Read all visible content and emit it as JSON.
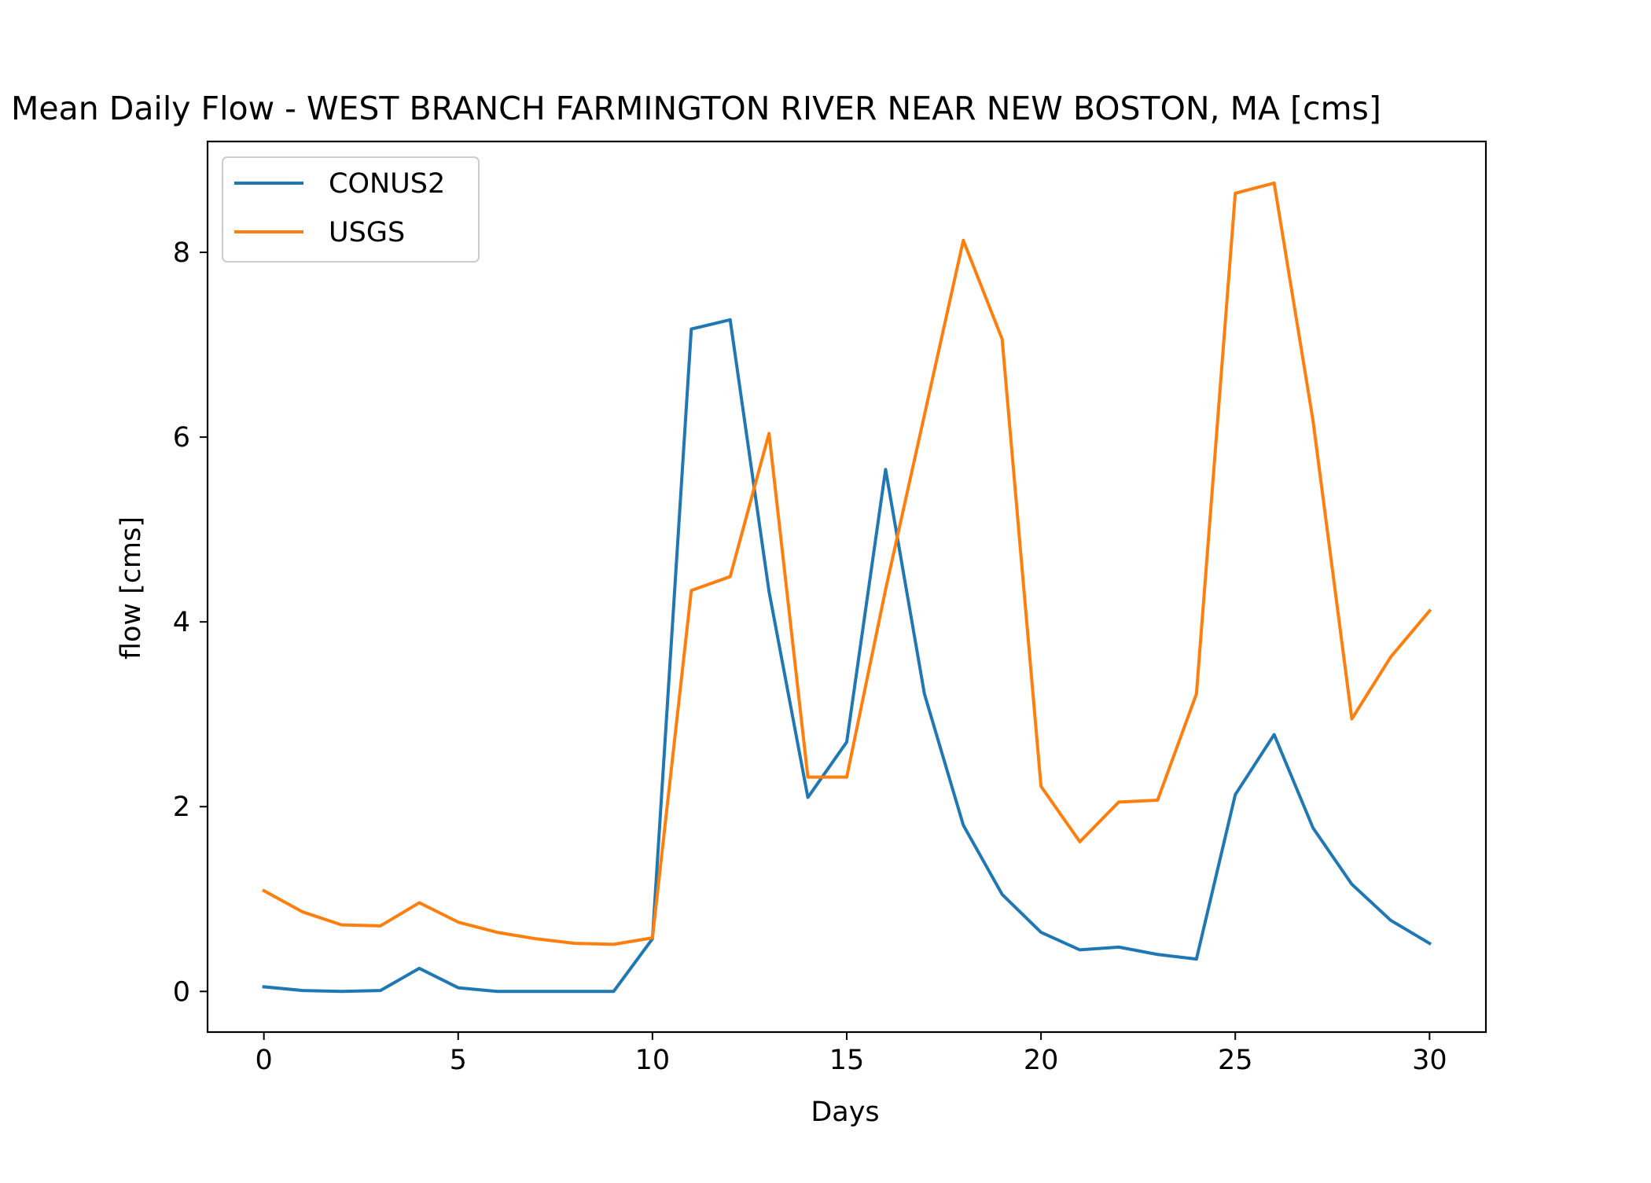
{
  "chart_data": {
    "type": "line",
    "title": "Mean Daily Flow - WEST BRANCH FARMINGTON RIVER NEAR NEW BOSTON, MA [cms]",
    "xlabel": "Days",
    "ylabel": "flow [cms]",
    "xlim": [
      -1.45,
      31.45
    ],
    "ylim": [
      -0.44,
      9.2
    ],
    "xticks": [
      0,
      5,
      10,
      15,
      20,
      25,
      30
    ],
    "yticks": [
      0,
      2,
      4,
      6,
      8
    ],
    "grid": false,
    "legend_position": "upper-left",
    "x": [
      0,
      1,
      2,
      3,
      4,
      5,
      6,
      7,
      8,
      9,
      10,
      11,
      12,
      13,
      14,
      15,
      16,
      17,
      18,
      19,
      20,
      21,
      22,
      23,
      24,
      25,
      26,
      27,
      28,
      29,
      30
    ],
    "series": [
      {
        "name": "CONUS2",
        "color": "#1f77b4",
        "values": [
          0.05,
          0.01,
          0.0,
          0.01,
          0.25,
          0.04,
          0.0,
          0.0,
          0.0,
          0.0,
          0.57,
          7.17,
          7.27,
          4.33,
          2.1,
          2.7,
          5.65,
          3.22,
          1.8,
          1.05,
          0.64,
          0.45,
          0.48,
          0.4,
          0.35,
          2.13,
          2.78,
          1.77,
          1.16,
          0.77,
          0.52
        ]
      },
      {
        "name": "USGS",
        "color": "#ff7f0e",
        "values": [
          1.09,
          0.86,
          0.72,
          0.71,
          0.96,
          0.75,
          0.64,
          0.57,
          0.52,
          0.51,
          0.58,
          4.34,
          4.49,
          6.04,
          2.32,
          2.32,
          4.35,
          6.24,
          8.13,
          7.06,
          2.22,
          1.62,
          2.05,
          2.07,
          3.22,
          8.64,
          8.75,
          6.18,
          2.95,
          3.62,
          4.12
        ]
      }
    ]
  }
}
